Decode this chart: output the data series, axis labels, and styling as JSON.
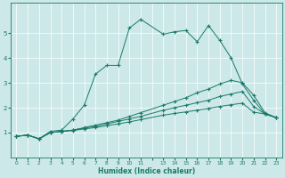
{
  "title": "",
  "xlabel": "Humidex (Indice chaleur)",
  "background_color": "#cce8e8",
  "line_color": "#1a7a6a",
  "xlim": [
    -0.5,
    23.5
  ],
  "ylim": [
    0,
    6.2
  ],
  "yticks": [
    1,
    2,
    3,
    4,
    5
  ],
  "xtick_positions": [
    0,
    1,
    2,
    3,
    4,
    5,
    6,
    7,
    8,
    9,
    10,
    11,
    12,
    13,
    14,
    15,
    16,
    17,
    18,
    19,
    20,
    21,
    22,
    23
  ],
  "xtick_labels": [
    "0",
    "1",
    "2",
    "3",
    "4",
    "5",
    "6",
    "7",
    "8",
    "9",
    "10",
    "11",
    "",
    "13",
    "14",
    "15",
    "16",
    "17",
    "18",
    "19",
    "20",
    "21",
    "22",
    "23"
  ],
  "series": [
    {
      "x": [
        0,
        1,
        2,
        3,
        4,
        5,
        6,
        7,
        8,
        9,
        10,
        11,
        13,
        14,
        15,
        16,
        17,
        18,
        19,
        20,
        21,
        22,
        23
      ],
      "y": [
        0.85,
        0.9,
        0.75,
        1.05,
        1.1,
        1.55,
        2.1,
        3.35,
        3.7,
        3.7,
        5.2,
        5.55,
        4.95,
        5.05,
        5.1,
        4.65,
        5.3,
        4.7,
        4.0,
        2.95,
        2.3,
        1.75,
        1.6
      ]
    },
    {
      "x": [
        0,
        1,
        2,
        3,
        4,
        5,
        6,
        7,
        8,
        9,
        10,
        11,
        13,
        14,
        15,
        16,
        17,
        18,
        19,
        20,
        21,
        22,
        23
      ],
      "y": [
        0.85,
        0.9,
        0.75,
        1.0,
        1.05,
        1.1,
        1.2,
        1.3,
        1.4,
        1.5,
        1.65,
        1.8,
        2.1,
        2.25,
        2.4,
        2.6,
        2.75,
        2.95,
        3.1,
        3.0,
        2.5,
        1.8,
        1.6
      ]
    },
    {
      "x": [
        0,
        1,
        2,
        3,
        4,
        5,
        6,
        7,
        8,
        9,
        10,
        11,
        13,
        14,
        15,
        16,
        17,
        18,
        19,
        20,
        21,
        22,
        23
      ],
      "y": [
        0.85,
        0.9,
        0.75,
        1.0,
        1.05,
        1.1,
        1.18,
        1.25,
        1.35,
        1.45,
        1.55,
        1.65,
        1.9,
        2.0,
        2.1,
        2.2,
        2.3,
        2.45,
        2.55,
        2.65,
        2.05,
        1.75,
        1.6
      ]
    },
    {
      "x": [
        0,
        1,
        2,
        3,
        4,
        5,
        6,
        7,
        8,
        9,
        10,
        11,
        13,
        14,
        15,
        16,
        17,
        18,
        19,
        20,
        21,
        22,
        23
      ],
      "y": [
        0.85,
        0.9,
        0.75,
        1.0,
        1.05,
        1.08,
        1.15,
        1.2,
        1.28,
        1.35,
        1.43,
        1.52,
        1.7,
        1.77,
        1.83,
        1.9,
        1.97,
        2.05,
        2.12,
        2.18,
        1.82,
        1.75,
        1.6
      ]
    }
  ]
}
